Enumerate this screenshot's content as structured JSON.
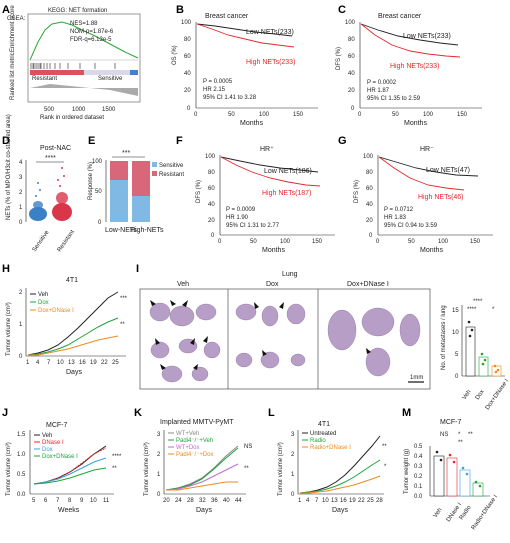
{
  "panels": {
    "A": {
      "letter": "A",
      "gsea": "GSEA:",
      "title": "KEGG: NET formation",
      "stats": [
        "NES=1.88",
        "NOM-p=1.87e-6",
        "FDR-q=6.13e-5"
      ],
      "ylabel1": "Enrichment score",
      "ylabel2": "Ranked list metric",
      "resistant": "Resistant",
      "sensitive": "Sensitive",
      "ticks": [
        "500",
        "1000",
        "1500"
      ],
      "xlabel": "Rank in ordered dataset"
    },
    "B": {
      "letter": "B",
      "title": "Breast cancer",
      "ylabel": "OS (%)",
      "xlabel": "Months",
      "low": "Low NETs(233)",
      "high": "High NETs(233)",
      "stats": [
        "P = 0.0005",
        "HR  2.15",
        "95% CI  1.41 to 3.28"
      ],
      "yticks": [
        "100",
        "80",
        "60",
        "40",
        "20",
        "0"
      ],
      "xticks": [
        "0",
        "50",
        "100",
        "150"
      ]
    },
    "C": {
      "letter": "C",
      "title": "Breast cancer",
      "ylabel": "DFS (%)",
      "xlabel": "Months",
      "low": "Low NETs(233)",
      "high": "High NETs(233)",
      "stats": [
        "P = 0.0002",
        "HR  1.87",
        "95% CI  1.35 to 2.59"
      ],
      "yticks": [
        "100",
        "80",
        "60",
        "40",
        "20",
        "0"
      ],
      "xticks": [
        "0",
        "50",
        "100",
        "150"
      ]
    },
    "D": {
      "letter": "D",
      "title": "Post-NAC",
      "sig": "****",
      "ylabel": "NETs (% of MPO/H3cit co-stained area)",
      "yticks": [
        "0",
        "1",
        "2",
        "3",
        "4"
      ],
      "groups": [
        "Sensitive",
        "Resistant"
      ]
    },
    "E": {
      "letter": "E",
      "sig": "***",
      "ylabel": "Response (%)",
      "yticks": [
        "0",
        "50",
        "100"
      ],
      "groups": [
        "Low-NETs",
        "High-NETs"
      ],
      "legend": [
        "Sensitive",
        "Resistant"
      ],
      "sensitive_pct": [
        68,
        43
      ]
    },
    "F": {
      "letter": "F",
      "title": "HR⁺",
      "ylabel": "DFS (%)",
      "xlabel": "Months",
      "low": "Low NETs(186)",
      "high": "High NETs(187)",
      "stats": [
        "P = 0.0009",
        "HR  1.90",
        "95% CI  1.31 to 2.77"
      ],
      "yticks": [
        "100",
        "80",
        "60",
        "40",
        "20",
        "0"
      ],
      "xticks": [
        "0",
        "50",
        "100",
        "150"
      ]
    },
    "G": {
      "letter": "G",
      "title": "HR⁻",
      "ylabel": "DFS (%)",
      "xlabel": "Months",
      "low": "Low NETs(47)",
      "high": "High NETs(46)",
      "stats": [
        "P = 0.0712",
        "HR  1.83",
        "95% CI  0.94 to 3.59"
      ],
      "yticks": [
        "100",
        "80",
        "60",
        "40",
        "20",
        "0"
      ],
      "xticks": [
        "0",
        "50",
        "100",
        "150"
      ]
    },
    "H": {
      "letter": "H",
      "title": "4T1",
      "ylabel": "Tumor volume (cm³)",
      "xlabel": "Days",
      "yticks": [
        "0",
        "1",
        "2"
      ],
      "xticks": [
        "1",
        "4",
        "7",
        "10",
        "13",
        "16",
        "19",
        "22",
        "25"
      ],
      "legend": [
        "Veh",
        "Dox",
        "Dox+DNase I"
      ],
      "sig": [
        "***",
        "**"
      ]
    },
    "I": {
      "letter": "I",
      "title": "Lung",
      "cols": [
        "Veh",
        "Dox",
        "Dox+DNase I"
      ],
      "scale": "1mm",
      "bar_ylabel": "No. of metastases / lung",
      "bar_yticks": [
        "0",
        "5",
        "10",
        "15"
      ],
      "bar_groups": [
        "Veh",
        "Dox",
        "Dox+DNase I"
      ],
      "sig": [
        "****",
        "****",
        "*"
      ]
    },
    "J": {
      "letter": "J",
      "title": "MCF-7",
      "ylabel": "Tumor volume (cm³)",
      "xlabel": "Weeks",
      "yticks": [
        "0.0",
        "0.5",
        "1.0",
        "1.5"
      ],
      "xticks": [
        "5",
        "6",
        "7",
        "8",
        "9",
        "10",
        "11"
      ],
      "legend": [
        "Veh",
        "DNase I",
        "Dox",
        "Dox+DNase I"
      ],
      "sig": [
        "****",
        "**"
      ]
    },
    "K": {
      "letter": "K",
      "title": "Implanted MMTV-PyMT",
      "ylabel": "Tumor volume (cm³)",
      "xlabel": "Days",
      "yticks": [
        "0",
        "1",
        "2",
        "3"
      ],
      "xticks": [
        "20",
        "24",
        "28",
        "32",
        "36",
        "40",
        "44"
      ],
      "legend": [
        "WT+Veh",
        "Padi4⁻/⁻+Veh",
        "WT+Dox",
        "Padi4⁻/⁻+Dox"
      ],
      "sig": [
        "NS",
        "**"
      ]
    },
    "L": {
      "letter": "L",
      "title": "4T1",
      "ylabel": "Tumor volume (cm³)",
      "xlabel": "Days",
      "yticks": [
        "0",
        "1",
        "2",
        "3"
      ],
      "xticks": [
        "1",
        "4",
        "7",
        "10",
        "13",
        "16",
        "19",
        "22",
        "25",
        "28"
      ],
      "legend": [
        "Untreated",
        "Radio",
        "Radio+DNase I"
      ],
      "sig": [
        "**",
        "*"
      ]
    },
    "M": {
      "letter": "M",
      "title": "MCF-7",
      "ylabel": "Tumor weight (g)",
      "yticks": [
        "0.0",
        "0.1",
        "0.2",
        "0.3",
        "0.4",
        "0.5"
      ],
      "groups": [
        "Veh",
        "DNase I",
        "Radio",
        "Radio+DNase I"
      ],
      "sig": [
        "NS",
        "*",
        "**",
        "**"
      ]
    }
  },
  "colors": {
    "black": "#222222",
    "red": "#e8262a",
    "green": "#1ea33a",
    "orange": "#f08a1c",
    "purple": "#c06ad6",
    "blue": "#3aa0e0",
    "gray": "#888888",
    "sensitive": "#7fb9e4",
    "resistant": "#d9677a"
  }
}
